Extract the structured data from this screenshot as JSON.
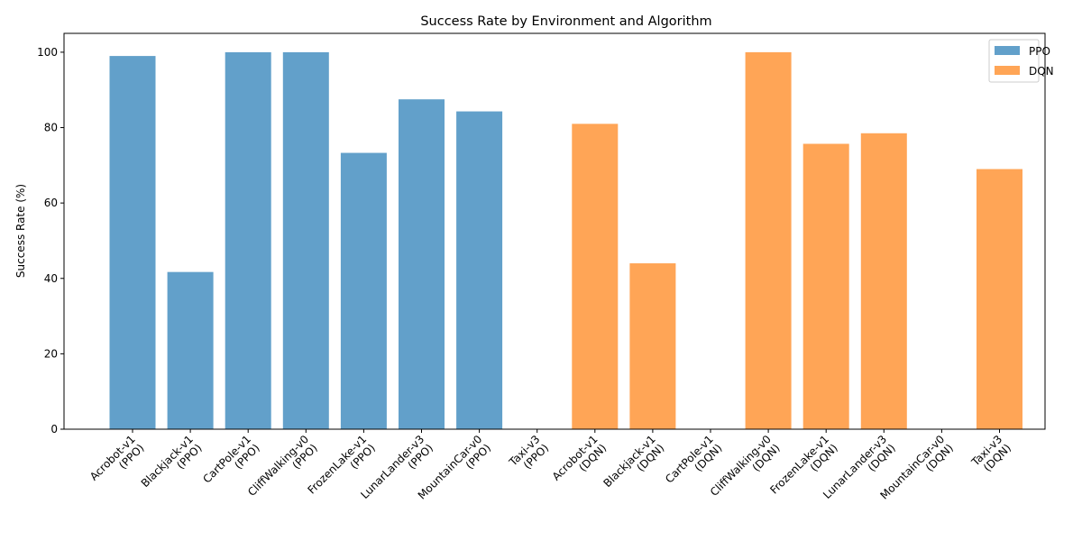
{
  "chart_data": {
    "type": "bar",
    "title": "Success Rate by Environment and Algorithm",
    "xlabel": "",
    "ylabel": "Success Rate (%)",
    "ylim": [
      0,
      105
    ],
    "yticks": [
      "0",
      "20",
      "40",
      "60",
      "80",
      "100"
    ],
    "grid": false,
    "legend_position": "top-right",
    "categories": [
      "Acrobot-v1\n(PPO)",
      "Blackjack-v1\n(PPO)",
      "CartPole-v1\n(PPO)",
      "CliffWalking-v0\n(PPO)",
      "FrozenLake-v1\n(PPO)",
      "LunarLander-v3\n(PPO)",
      "MountainCar-v0\n(PPO)",
      "Taxi-v3\n(PPO)",
      "Acrobot-v1\n(DQN)",
      "Blackjack-v1\n(DQN)",
      "CartPole-v1\n(DQN)",
      "CliffWalking-v0\n(DQN)",
      "FrozenLake-v1\n(DQN)",
      "LunarLander-v3\n(DQN)",
      "MountainCar-v0\n(DQN)",
      "Taxi-v3\n(DQN)"
    ],
    "series": [
      {
        "name": "PPO",
        "color": "#1f77b4",
        "values": [
          99.0,
          41.7,
          100.0,
          100.0,
          73.3,
          87.5,
          84.3,
          0,
          null,
          null,
          null,
          null,
          null,
          null,
          null,
          null
        ]
      },
      {
        "name": "DQN",
        "color": "#ff7f0e",
        "values": [
          null,
          null,
          null,
          null,
          null,
          null,
          null,
          null,
          81.0,
          44.0,
          0,
          100.0,
          75.7,
          78.5,
          0,
          69.0
        ]
      }
    ]
  }
}
